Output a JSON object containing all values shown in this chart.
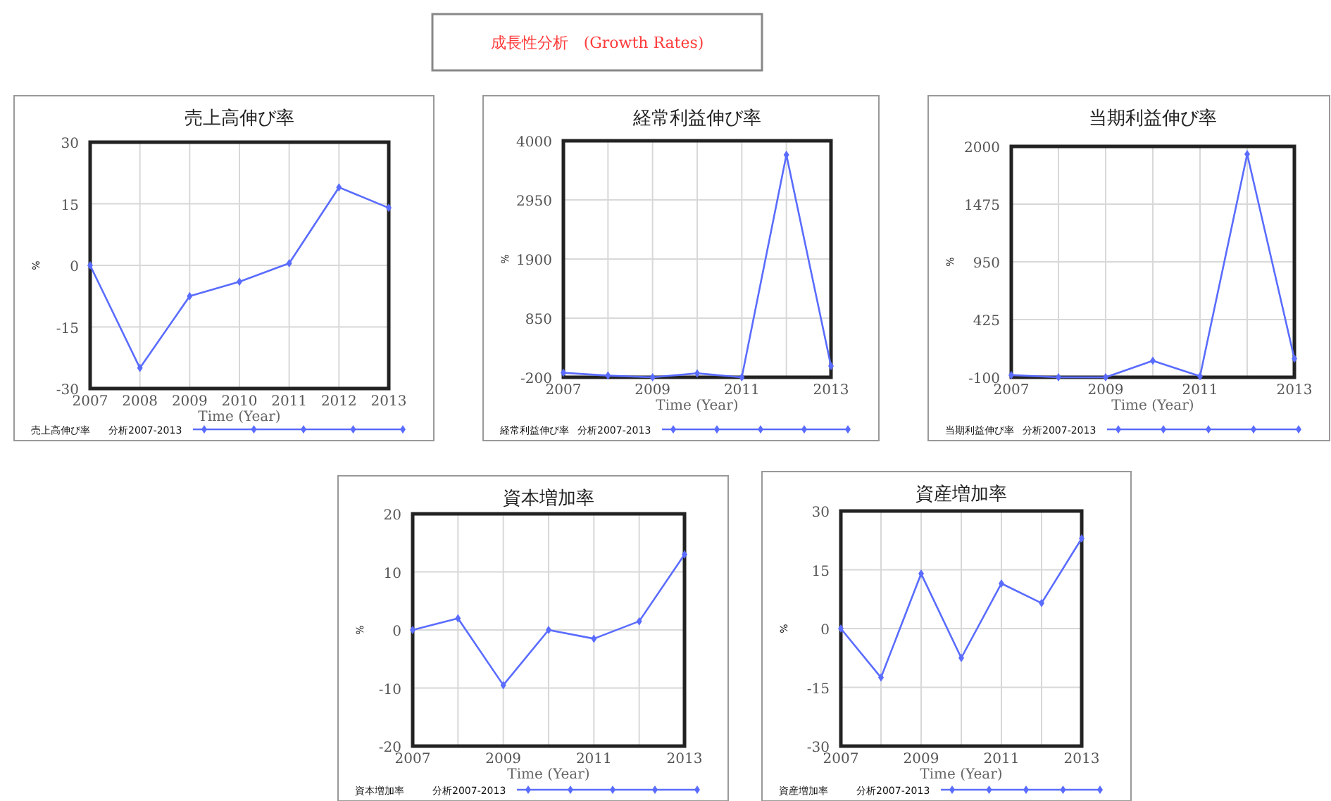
{
  "chart_data": [
    {
      "type": "other",
      "title": "成長性分析　(Growth Rates)"
    },
    {
      "type": "line",
      "title": "売上高伸び率",
      "xlabel": "Time (Year)",
      "ylabel": "%",
      "annotations": [
        "分析2007-2013"
      ],
      "x": [
        2007,
        2008,
        2009,
        2010,
        2011,
        2012,
        2013
      ],
      "xlim": [
        2007,
        2013
      ],
      "xticks": [
        2007,
        2008,
        2009,
        2010,
        2011,
        2012,
        2013
      ],
      "ylim": [
        -30,
        30
      ],
      "yticks": [
        -30,
        -15,
        0,
        15,
        30
      ],
      "grid": true,
      "legend": "bottom",
      "marker": "diamond",
      "series": [
        {
          "name": "売上高伸び率",
          "color": "#5a6cff",
          "values": [
            0,
            -25,
            -7.5,
            -4,
            0.5,
            19,
            14
          ]
        }
      ]
    },
    {
      "type": "line",
      "title": "経常利益伸び率",
      "xlabel": "Time (Year)",
      "ylabel": "%",
      "annotations": [
        "分析2007-2013"
      ],
      "x": [
        2007,
        2008,
        2009,
        2010,
        2011,
        2012,
        2013
      ],
      "xlim": [
        2007,
        2013
      ],
      "xticks": [
        2007,
        {
          "value": 2008,
          "label": null
        },
        2009,
        {
          "value": 2010,
          "label": null
        },
        2011,
        {
          "value": 2012,
          "label": null
        },
        2013
      ],
      "ylim": [
        -200,
        4000
      ],
      "yticks": [
        -200,
        850,
        1900,
        2950,
        4000
      ],
      "grid": true,
      "legend": "bottom",
      "marker": "diamond",
      "series": [
        {
          "name": "経常利益伸び率",
          "color": "#5a6cff",
          "values": [
            -120,
            -170,
            -200,
            -130,
            -200,
            3750,
            0
          ]
        }
      ]
    },
    {
      "type": "line",
      "title": "当期利益伸び率",
      "xlabel": "Time (Year)",
      "ylabel": "%",
      "annotations": [
        "分析2007-2013"
      ],
      "x": [
        2007,
        2008,
        2009,
        2010,
        2011,
        2012,
        2013
      ],
      "xlim": [
        2007,
        2013
      ],
      "xticks": [
        2007,
        {
          "value": 2008,
          "label": null
        },
        2009,
        {
          "value": 2010,
          "label": null
        },
        2011,
        {
          "value": 2012,
          "label": null
        },
        2013
      ],
      "ylim": [
        -100,
        2000
      ],
      "yticks": [
        -100,
        425,
        950,
        1475,
        2000
      ],
      "grid": true,
      "legend": "bottom",
      "marker": "diamond",
      "series": [
        {
          "name": "当期利益伸び率",
          "color": "#5a6cff",
          "values": [
            -80,
            -100,
            -100,
            50,
            -90,
            1930,
            70
          ]
        }
      ]
    },
    {
      "type": "line",
      "title": "資本増加率",
      "xlabel": "Time (Year)",
      "ylabel": "%",
      "annotations": [
        "分析2007-2013"
      ],
      "x": [
        2007,
        2008,
        2009,
        2010,
        2011,
        2012,
        2013
      ],
      "xlim": [
        2007,
        2013
      ],
      "xticks": [
        2007,
        {
          "value": 2008,
          "label": null
        },
        2009,
        {
          "value": 2010,
          "label": null
        },
        2011,
        {
          "value": 2012,
          "label": null
        },
        2013
      ],
      "ylim": [
        -20,
        20
      ],
      "yticks": [
        -20,
        -10,
        0,
        10,
        20
      ],
      "grid": true,
      "legend": "bottom",
      "marker": "diamond",
      "series": [
        {
          "name": "資本増加率",
          "color": "#5a6cff",
          "values": [
            0,
            2,
            -9.5,
            0,
            -1.5,
            1.5,
            13
          ]
        }
      ]
    },
    {
      "type": "line",
      "title": "資産増加率",
      "xlabel": "Time (Year)",
      "ylabel": "%",
      "annotations": [
        "分析2007-2013"
      ],
      "x": [
        2007,
        2008,
        2009,
        2010,
        2011,
        2012,
        2013
      ],
      "xlim": [
        2007,
        2013
      ],
      "xticks": [
        2007,
        {
          "value": 2008,
          "label": null
        },
        2009,
        {
          "value": 2010,
          "label": null
        },
        2011,
        {
          "value": 2012,
          "label": null
        },
        2013
      ],
      "ylim": [
        -30,
        30
      ],
      "yticks": [
        -30,
        -15,
        0,
        15,
        30
      ],
      "grid": true,
      "legend": "bottom",
      "marker": "diamond",
      "series": [
        {
          "name": "資産増加率",
          "color": "#5a6cff",
          "values": [
            0,
            -12.5,
            14,
            -7.5,
            11.5,
            6.5,
            23
          ]
        }
      ]
    }
  ]
}
